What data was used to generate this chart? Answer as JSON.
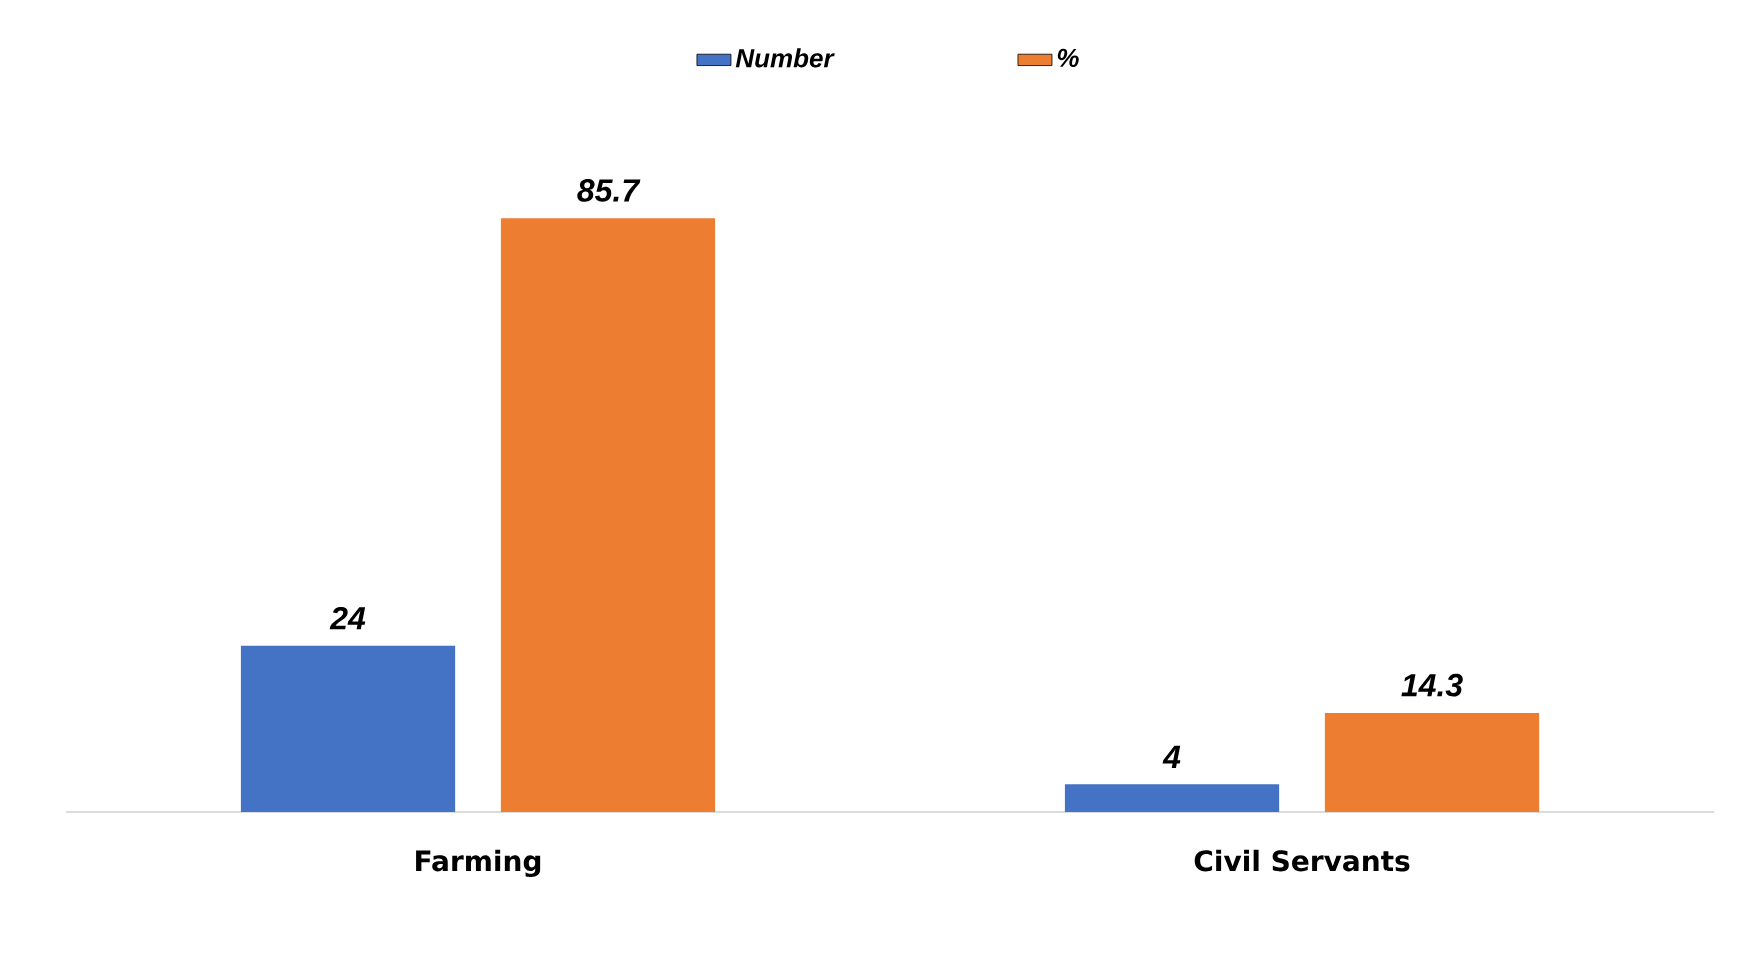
{
  "chart_data": {
    "type": "bar",
    "categories": [
      "Farming",
      "Civil Servants"
    ],
    "series": [
      {
        "name": "Number",
        "color": "#4472c4",
        "values": [
          24,
          4
        ]
      },
      {
        "name": "%",
        "color": "#ed7d31",
        "values": [
          85.7,
          14.3
        ]
      }
    ],
    "data_labels": true,
    "legend": "top"
  }
}
